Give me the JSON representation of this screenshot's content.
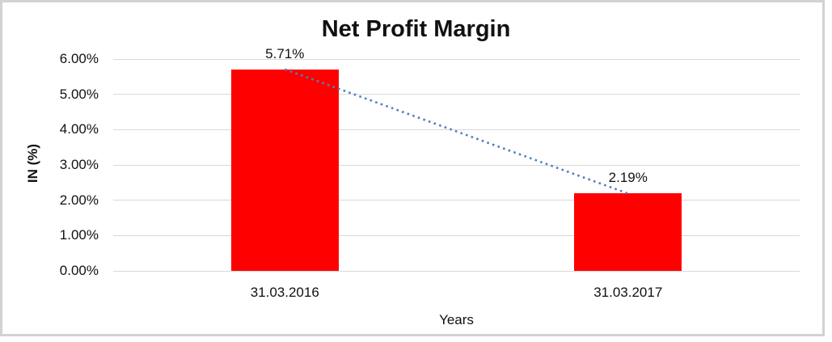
{
  "chart_data": {
    "type": "bar",
    "title": "Net Profit Margin",
    "xlabel": "Years",
    "ylabel": "IN (%)",
    "categories": [
      "31.03.2016",
      "31.03.2017"
    ],
    "values": [
      5.71,
      2.19
    ],
    "data_labels": [
      "5.71%",
      "2.19%"
    ],
    "ylim": [
      0,
      6
    ],
    "ytick_step": 1,
    "yticks": [
      "6.00%",
      "5.00%",
      "4.00%",
      "3.00%",
      "2.00%",
      "1.00%",
      "0.00%"
    ],
    "grid": "horizontal",
    "legend": "none",
    "bar_color": "#ff0000",
    "gridline_color": "#d9d9d9",
    "text_color": "#111111",
    "frame_color": "#d2d2d2",
    "trendline": {
      "type": "linear",
      "style": "dotted",
      "color": "#4f81bd",
      "from_value": 5.71,
      "to_value": 2.19
    }
  }
}
